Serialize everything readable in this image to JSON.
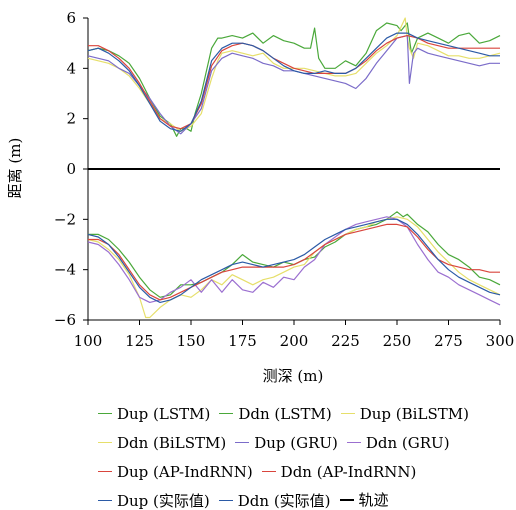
{
  "chart_data": {
    "type": "line",
    "xlabel": "测深 (m)",
    "ylabel": "距离 (m)",
    "xlim": [
      100,
      300
    ],
    "ylim": [
      -6,
      6
    ],
    "xticks": [
      100,
      125,
      150,
      175,
      200,
      225,
      250,
      275,
      300
    ],
    "yticks": [
      6,
      4,
      2,
      0,
      -2,
      -4,
      -6
    ],
    "legend_position": "bottom",
    "series": [
      {
        "name": "Dup (LSTM)",
        "color": "#4aa83a",
        "group": "up",
        "x": [
          100,
          105,
          110,
          115,
          120,
          125,
          130,
          135,
          140,
          143,
          145,
          148,
          150,
          152,
          155,
          160,
          163,
          165,
          170,
          175,
          180,
          185,
          190,
          195,
          200,
          205,
          208,
          210,
          212,
          215,
          220,
          225,
          230,
          235,
          240,
          245,
          250,
          252,
          255,
          257,
          260,
          265,
          270,
          275,
          280,
          285,
          290,
          295,
          300
        ],
        "y": [
          4.7,
          4.8,
          4.7,
          4.5,
          4.2,
          3.6,
          2.8,
          2.1,
          1.8,
          1.3,
          1.6,
          1.6,
          1.5,
          2.2,
          3.0,
          4.8,
          5.2,
          5.2,
          5.3,
          5.2,
          5.4,
          5.0,
          5.3,
          5.1,
          5.0,
          4.8,
          4.8,
          5.6,
          4.4,
          4.0,
          4.0,
          4.3,
          4.1,
          4.6,
          5.5,
          5.8,
          5.7,
          5.5,
          5.8,
          4.6,
          5.2,
          5.4,
          5.2,
          5.0,
          5.3,
          5.4,
          5.0,
          5.1,
          5.3
        ]
      },
      {
        "name": "Ddn (LSTM)",
        "color": "#4aa83a",
        "group": "dn",
        "x": [
          100,
          105,
          110,
          115,
          120,
          125,
          130,
          135,
          140,
          145,
          150,
          155,
          160,
          165,
          170,
          175,
          180,
          185,
          190,
          195,
          200,
          205,
          210,
          215,
          220,
          225,
          230,
          235,
          240,
          245,
          250,
          253,
          255,
          260,
          265,
          270,
          275,
          280,
          285,
          290,
          295,
          300
        ],
        "y": [
          -2.6,
          -2.6,
          -2.8,
          -3.2,
          -3.7,
          -4.3,
          -4.8,
          -5.1,
          -5.0,
          -4.6,
          -4.6,
          -4.5,
          -4.3,
          -4.1,
          -3.8,
          -3.4,
          -3.7,
          -3.8,
          -3.9,
          -3.7,
          -3.8,
          -3.6,
          -3.5,
          -3.1,
          -2.9,
          -2.6,
          -2.4,
          -2.3,
          -2.2,
          -2.0,
          -1.7,
          -1.9,
          -1.8,
          -2.2,
          -2.5,
          -3.0,
          -3.4,
          -3.6,
          -3.9,
          -4.3,
          -4.4,
          -4.6
        ]
      },
      {
        "name": "Dup (BiLSTM)",
        "color": "#e6df6a",
        "group": "up",
        "x": [
          100,
          105,
          110,
          115,
          120,
          125,
          130,
          135,
          140,
          145,
          150,
          155,
          160,
          163,
          165,
          170,
          175,
          180,
          185,
          190,
          195,
          200,
          205,
          210,
          215,
          220,
          225,
          230,
          235,
          240,
          245,
          250,
          254,
          255,
          256,
          258,
          260,
          265,
          270,
          275,
          280,
          285,
          290,
          295,
          300
        ],
        "y": [
          4.4,
          4.3,
          4.2,
          4.0,
          3.7,
          3.2,
          2.6,
          2.0,
          1.8,
          1.5,
          1.7,
          2.2,
          3.6,
          4.3,
          4.6,
          4.7,
          4.6,
          4.5,
          4.6,
          4.2,
          4.0,
          4.0,
          4.0,
          3.9,
          3.8,
          3.7,
          3.7,
          3.8,
          4.2,
          4.6,
          4.9,
          5.3,
          6.0,
          5.2,
          4.8,
          4.4,
          5.0,
          4.9,
          4.7,
          4.5,
          4.5,
          4.4,
          4.4,
          4.5,
          4.6
        ]
      },
      {
        "name": "Ddn (BiLSTM)",
        "color": "#e6df6a",
        "group": "dn",
        "x": [
          100,
          105,
          110,
          115,
          120,
          125,
          128,
          130,
          135,
          140,
          145,
          150,
          155,
          160,
          165,
          170,
          175,
          180,
          185,
          190,
          195,
          200,
          205,
          210,
          215,
          220,
          225,
          230,
          235,
          240,
          245,
          250,
          255,
          260,
          265,
          270,
          275,
          280,
          285,
          290,
          295,
          300
        ],
        "y": [
          -2.8,
          -2.9,
          -3.2,
          -3.6,
          -4.2,
          -5.1,
          -5.9,
          -5.9,
          -5.5,
          -5.2,
          -5.0,
          -5.1,
          -4.8,
          -4.4,
          -4.6,
          -4.2,
          -4.4,
          -4.6,
          -4.4,
          -4.3,
          -4.1,
          -3.9,
          -3.8,
          -3.3,
          -3.0,
          -2.8,
          -2.6,
          -2.4,
          -2.3,
          -2.1,
          -2.0,
          -1.9,
          -2.0,
          -2.3,
          -2.8,
          -3.3,
          -3.7,
          -4.1,
          -4.4,
          -4.6,
          -4.8,
          -5.0
        ]
      },
      {
        "name": "Dup (GRU)",
        "color": "#7b6cc9",
        "group": "up",
        "x": [
          100,
          105,
          110,
          115,
          120,
          125,
          130,
          135,
          140,
          145,
          150,
          155,
          160,
          165,
          170,
          175,
          180,
          185,
          190,
          195,
          200,
          205,
          210,
          215,
          220,
          225,
          230,
          235,
          240,
          245,
          250,
          255,
          256,
          258,
          260,
          265,
          270,
          275,
          280,
          285,
          290,
          295,
          300
        ],
        "y": [
          4.5,
          4.4,
          4.3,
          4.0,
          3.8,
          3.3,
          2.8,
          2.2,
          1.7,
          1.4,
          1.8,
          2.4,
          3.9,
          4.4,
          4.6,
          4.5,
          4.4,
          4.2,
          4.1,
          3.9,
          3.9,
          3.8,
          3.7,
          3.6,
          3.5,
          3.4,
          3.2,
          3.6,
          4.2,
          4.7,
          5.2,
          5.3,
          3.4,
          4.6,
          4.8,
          4.6,
          4.5,
          4.4,
          4.3,
          4.2,
          4.1,
          4.2,
          4.2
        ]
      },
      {
        "name": "Ddn (GRU)",
        "color": "#9b6fd0",
        "group": "dn",
        "x": [
          100,
          105,
          110,
          115,
          120,
          125,
          130,
          135,
          140,
          145,
          150,
          155,
          160,
          165,
          170,
          175,
          180,
          185,
          190,
          195,
          200,
          205,
          210,
          215,
          220,
          225,
          230,
          235,
          240,
          245,
          250,
          255,
          260,
          265,
          270,
          275,
          280,
          285,
          290,
          295,
          300
        ],
        "y": [
          -2.9,
          -3.0,
          -3.3,
          -3.8,
          -4.4,
          -5.1,
          -5.3,
          -5.2,
          -4.9,
          -4.7,
          -4.4,
          -4.9,
          -4.4,
          -4.9,
          -4.4,
          -4.8,
          -4.9,
          -4.5,
          -4.7,
          -4.3,
          -4.4,
          -3.9,
          -3.6,
          -3.0,
          -2.7,
          -2.4,
          -2.2,
          -2.1,
          -2.0,
          -1.9,
          -2.0,
          -2.3,
          -3.0,
          -3.6,
          -4.1,
          -4.3,
          -4.6,
          -4.8,
          -5.0,
          -5.2,
          -5.4
        ]
      },
      {
        "name": "Dup (AP-IndRNN)",
        "color": "#d9453d",
        "group": "up",
        "x": [
          100,
          105,
          110,
          115,
          120,
          125,
          130,
          135,
          140,
          145,
          150,
          155,
          160,
          165,
          170,
          175,
          180,
          185,
          190,
          195,
          200,
          205,
          210,
          215,
          220,
          225,
          230,
          235,
          240,
          245,
          250,
          255,
          260,
          265,
          270,
          275,
          280,
          285,
          290,
          295,
          300
        ],
        "y": [
          4.9,
          4.9,
          4.7,
          4.4,
          4.0,
          3.4,
          2.7,
          2.0,
          1.7,
          1.6,
          1.8,
          2.6,
          4.1,
          4.7,
          4.9,
          5.0,
          4.9,
          4.7,
          4.4,
          4.2,
          4.0,
          3.9,
          3.8,
          3.8,
          3.8,
          3.8,
          4.0,
          4.3,
          4.7,
          5.0,
          5.2,
          5.3,
          5.2,
          5.0,
          4.9,
          4.8,
          4.8,
          4.8,
          4.8,
          4.8,
          4.8
        ]
      },
      {
        "name": "Ddn (AP-IndRNN)",
        "color": "#d9453d",
        "group": "dn",
        "x": [
          100,
          105,
          110,
          115,
          120,
          125,
          130,
          135,
          140,
          145,
          150,
          155,
          160,
          165,
          170,
          175,
          180,
          185,
          190,
          195,
          200,
          205,
          210,
          215,
          220,
          225,
          230,
          235,
          240,
          245,
          250,
          255,
          260,
          265,
          270,
          275,
          280,
          285,
          290,
          295,
          300
        ],
        "y": [
          -2.8,
          -2.8,
          -3.0,
          -3.4,
          -4.0,
          -4.6,
          -5.0,
          -5.2,
          -5.1,
          -4.9,
          -4.7,
          -4.5,
          -4.3,
          -4.1,
          -4.0,
          -3.9,
          -3.9,
          -3.9,
          -3.9,
          -3.9,
          -3.8,
          -3.6,
          -3.3,
          -3.0,
          -2.8,
          -2.6,
          -2.5,
          -2.4,
          -2.3,
          -2.2,
          -2.2,
          -2.3,
          -2.7,
          -3.2,
          -3.6,
          -3.8,
          -3.9,
          -4.0,
          -4.0,
          -4.1,
          -4.1
        ]
      },
      {
        "name": "Dup (实际值)",
        "color": "#2b5aa6",
        "group": "up",
        "x": [
          100,
          105,
          110,
          115,
          120,
          125,
          130,
          135,
          140,
          145,
          150,
          155,
          160,
          165,
          170,
          175,
          180,
          185,
          190,
          195,
          200,
          205,
          210,
          215,
          220,
          225,
          230,
          235,
          240,
          245,
          250,
          255,
          260,
          265,
          270,
          275,
          280,
          285,
          290,
          295,
          300
        ],
        "y": [
          4.7,
          4.8,
          4.6,
          4.3,
          3.9,
          3.3,
          2.6,
          1.9,
          1.6,
          1.5,
          1.8,
          2.7,
          4.3,
          4.8,
          5.0,
          5.0,
          4.9,
          4.7,
          4.4,
          4.1,
          3.9,
          3.8,
          3.8,
          3.9,
          3.8,
          3.8,
          4.0,
          4.4,
          4.8,
          5.2,
          5.4,
          5.4,
          5.2,
          5.1,
          5.0,
          4.9,
          4.8,
          4.7,
          4.6,
          4.5,
          4.5
        ]
      },
      {
        "name": "Ddn (实际值)",
        "color": "#2b5aa6",
        "group": "dn",
        "x": [
          100,
          105,
          110,
          115,
          120,
          125,
          130,
          135,
          140,
          145,
          150,
          155,
          160,
          165,
          170,
          175,
          180,
          185,
          190,
          195,
          200,
          205,
          210,
          215,
          220,
          225,
          230,
          235,
          240,
          245,
          250,
          255,
          260,
          265,
          270,
          275,
          280,
          285,
          290,
          295,
          300
        ],
        "y": [
          -2.6,
          -2.7,
          -3.0,
          -3.5,
          -4.1,
          -4.7,
          -5.1,
          -5.3,
          -5.2,
          -5.0,
          -4.7,
          -4.4,
          -4.2,
          -4.0,
          -3.8,
          -3.7,
          -3.8,
          -3.9,
          -3.8,
          -3.7,
          -3.6,
          -3.4,
          -3.1,
          -2.8,
          -2.6,
          -2.4,
          -2.3,
          -2.2,
          -2.1,
          -2.0,
          -2.0,
          -2.2,
          -2.6,
          -3.1,
          -3.6,
          -4.0,
          -4.3,
          -4.5,
          -4.7,
          -4.9,
          -5.0
        ]
      },
      {
        "name": "轨迹",
        "color": "#000000",
        "group": "track",
        "x": [
          100,
          300
        ],
        "y": [
          0,
          0
        ]
      }
    ]
  }
}
